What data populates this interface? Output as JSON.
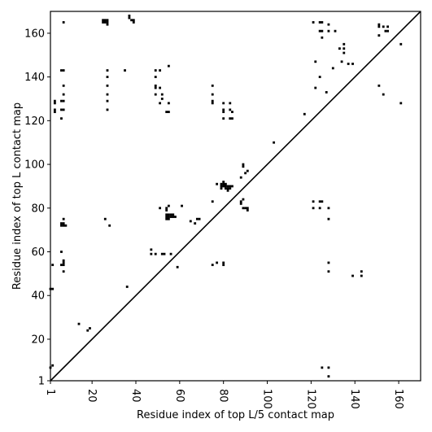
{
  "chart_data": {
    "type": "scatter",
    "xlabel": "Residue index of top L/5 contact map",
    "ylabel": "Residue index of top L contact map",
    "xlim": [
      1,
      170
    ],
    "ylim": [
      1,
      170
    ],
    "x_ticks": [
      1,
      20,
      40,
      60,
      80,
      100,
      120,
      140,
      160
    ],
    "y_ticks": [
      1,
      20,
      40,
      60,
      80,
      100,
      120,
      140,
      160
    ],
    "grid": false,
    "diagonal_line": true,
    "marker": "filled-square",
    "marker_color": "#000000",
    "series": [
      {
        "points": [
          [
            7,
            165
          ],
          [
            25,
            166
          ],
          [
            25,
            165
          ],
          [
            26,
            166
          ],
          [
            26,
            165
          ],
          [
            27,
            166
          ],
          [
            27,
            165
          ],
          [
            27,
            164
          ],
          [
            37,
            168
          ],
          [
            37,
            167
          ],
          [
            38,
            166
          ],
          [
            39,
            166
          ],
          [
            39,
            165
          ],
          [
            6,
            143
          ],
          [
            7,
            143
          ],
          [
            7,
            136
          ],
          [
            7,
            132
          ],
          [
            6,
            129
          ],
          [
            7,
            129
          ],
          [
            3,
            129
          ],
          [
            3,
            128
          ],
          [
            3,
            125
          ],
          [
            3,
            124
          ],
          [
            6,
            125
          ],
          [
            7,
            125
          ],
          [
            6,
            121
          ],
          [
            27,
            143
          ],
          [
            27,
            140
          ],
          [
            27,
            136
          ],
          [
            27,
            132
          ],
          [
            27,
            129
          ],
          [
            27,
            125
          ],
          [
            35,
            143
          ],
          [
            49,
            143
          ],
          [
            51,
            143
          ],
          [
            49,
            140
          ],
          [
            49,
            136
          ],
          [
            49,
            135
          ],
          [
            51,
            135
          ],
          [
            49,
            132
          ],
          [
            52,
            132
          ],
          [
            52,
            130
          ],
          [
            51,
            128
          ],
          [
            55,
            145
          ],
          [
            55,
            128
          ],
          [
            54,
            124
          ],
          [
            55,
            124
          ],
          [
            75,
            136
          ],
          [
            75,
            132
          ],
          [
            75,
            129
          ],
          [
            75,
            128
          ],
          [
            80,
            128
          ],
          [
            83,
            128
          ],
          [
            80,
            125
          ],
          [
            80,
            124
          ],
          [
            83,
            125
          ],
          [
            84,
            124
          ],
          [
            80,
            121
          ],
          [
            83,
            121
          ],
          [
            84,
            121
          ],
          [
            117,
            123
          ],
          [
            103,
            110
          ],
          [
            89,
            100
          ],
          [
            89,
            99
          ],
          [
            91,
            97
          ],
          [
            90,
            96
          ],
          [
            88,
            94
          ],
          [
            77,
            91
          ],
          [
            79,
            91
          ],
          [
            80,
            91
          ],
          [
            80,
            92
          ],
          [
            81,
            91
          ],
          [
            79,
            90
          ],
          [
            80,
            90
          ],
          [
            81,
            90
          ],
          [
            82,
            90
          ],
          [
            83,
            90
          ],
          [
            84,
            90
          ],
          [
            79,
            89
          ],
          [
            81,
            89
          ],
          [
            82,
            89
          ],
          [
            83,
            89
          ],
          [
            82,
            88
          ],
          [
            1,
            43
          ],
          [
            2,
            43
          ],
          [
            36,
            44
          ],
          [
            2,
            54
          ],
          [
            6,
            54
          ],
          [
            7,
            54
          ],
          [
            7,
            56
          ],
          [
            7,
            55
          ],
          [
            7,
            51
          ],
          [
            6,
            60
          ],
          [
            6,
            73
          ],
          [
            7,
            73
          ],
          [
            6,
            72
          ],
          [
            7,
            72
          ],
          [
            8,
            72
          ],
          [
            7,
            75
          ],
          [
            26,
            75
          ],
          [
            28,
            72
          ],
          [
            47,
            61
          ],
          [
            47,
            59
          ],
          [
            49,
            59
          ],
          [
            52,
            59
          ],
          [
            53,
            59
          ],
          [
            56,
            59
          ],
          [
            59,
            53
          ],
          [
            51,
            80
          ],
          [
            54,
            80
          ],
          [
            54,
            79
          ],
          [
            55,
            81
          ],
          [
            54,
            77
          ],
          [
            55,
            77
          ],
          [
            56,
            77
          ],
          [
            57,
            77
          ],
          [
            54,
            76
          ],
          [
            55,
            76
          ],
          [
            56,
            76
          ],
          [
            57,
            76
          ],
          [
            58,
            76
          ],
          [
            54,
            75
          ],
          [
            55,
            75
          ],
          [
            61,
            81
          ],
          [
            65,
            74
          ],
          [
            67,
            73
          ],
          [
            68,
            75
          ],
          [
            69,
            75
          ],
          [
            75,
            83
          ],
          [
            75,
            54
          ],
          [
            77,
            55
          ],
          [
            80,
            55
          ],
          [
            80,
            54
          ],
          [
            88,
            82
          ],
          [
            88,
            83
          ],
          [
            89,
            84
          ],
          [
            89,
            80
          ],
          [
            90,
            80
          ],
          [
            91,
            80
          ],
          [
            91,
            79
          ],
          [
            14,
            27
          ],
          [
            18,
            24
          ],
          [
            19,
            25
          ],
          [
            1,
            7
          ],
          [
            2,
            8
          ],
          [
            121,
            165
          ],
          [
            124,
            165
          ],
          [
            125,
            165
          ],
          [
            124,
            161
          ],
          [
            125,
            161
          ],
          [
            128,
            164
          ],
          [
            128,
            161
          ],
          [
            131,
            161
          ],
          [
            125,
            158
          ],
          [
            133,
            153
          ],
          [
            135,
            155
          ],
          [
            135,
            153
          ],
          [
            135,
            151
          ],
          [
            137,
            146
          ],
          [
            139,
            146
          ],
          [
            134,
            147
          ],
          [
            122,
            147
          ],
          [
            130,
            144
          ],
          [
            124,
            140
          ],
          [
            122,
            135
          ],
          [
            127,
            133
          ],
          [
            151,
            164
          ],
          [
            151,
            163
          ],
          [
            153,
            163
          ],
          [
            155,
            163
          ],
          [
            154,
            161
          ],
          [
            155,
            161
          ],
          [
            151,
            159
          ],
          [
            161,
            155
          ],
          [
            151,
            136
          ],
          [
            153,
            132
          ],
          [
            161,
            128
          ],
          [
            121,
            83
          ],
          [
            124,
            83
          ],
          [
            125,
            83
          ],
          [
            121,
            80
          ],
          [
            124,
            80
          ],
          [
            128,
            80
          ],
          [
            128,
            75
          ],
          [
            128,
            55
          ],
          [
            128,
            51
          ],
          [
            139,
            49
          ],
          [
            143,
            51
          ],
          [
            143,
            49
          ],
          [
            125,
            7
          ],
          [
            128,
            7
          ],
          [
            128,
            3
          ]
        ]
      }
    ]
  }
}
